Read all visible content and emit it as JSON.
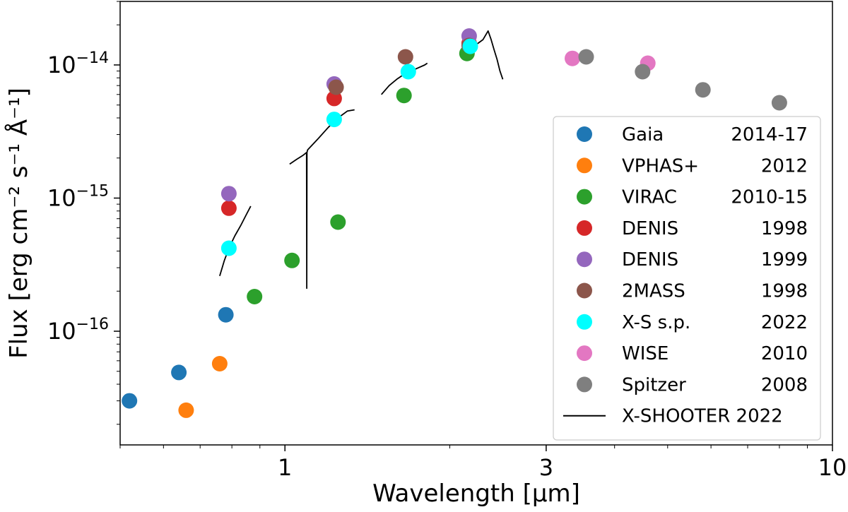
{
  "chart_data": {
    "type": "scatter",
    "xscale": "log",
    "yscale": "log",
    "xlim": [
      0.5,
      10
    ],
    "ylim": [
      1.4e-17,
      3e-14
    ],
    "xlabel": "Wavelength [µm]",
    "ylabel": "Flux [erg cm⁻² s⁻¹ Å⁻¹]",
    "x_ticks": [
      {
        "value": 1,
        "label": "1"
      },
      {
        "value": 3,
        "label": "3"
      },
      {
        "value": 10,
        "label": "10"
      }
    ],
    "y_ticks": [
      {
        "value": 1e-16,
        "base": "10",
        "exp": "−16"
      },
      {
        "value": 1e-15,
        "base": "10",
        "exp": "−15"
      },
      {
        "value": 1e-14,
        "base": "10",
        "exp": "−14"
      }
    ],
    "series": [
      {
        "name": "Gaia",
        "year": "2014-17",
        "color": "#1f77b4",
        "x": [
          0.52,
          0.64,
          0.78
        ],
        "y": [
          3e-17,
          4.9e-17,
          1.33e-16
        ]
      },
      {
        "name": "VPHAS+",
        "year": "2012",
        "color": "#ff7f0e",
        "x": [
          0.66,
          0.76
        ],
        "y": [
          2.55e-17,
          5.7e-17
        ]
      },
      {
        "name": "VIRAC",
        "year": "2010-15",
        "color": "#2ca02c",
        "x": [
          0.88,
          1.03,
          1.25,
          1.65,
          2.15
        ],
        "y": [
          1.82e-16,
          3.4e-16,
          6.6e-16,
          5.9e-15,
          1.22e-14
        ]
      },
      {
        "name": "DENIS",
        "year": "1998",
        "color": "#d62728",
        "x": [
          0.79,
          1.23,
          2.17
        ],
        "y": [
          8.4e-16,
          5.6e-15,
          1.45e-14
        ]
      },
      {
        "name": "DENIS",
        "year": "1999",
        "color": "#9467bd",
        "x": [
          0.79,
          1.23,
          2.17
        ],
        "y": [
          1.08e-15,
          7.2e-15,
          1.65e-14
        ]
      },
      {
        "name": "2MASS",
        "year": "1998",
        "color": "#8c564b",
        "x": [
          1.24,
          1.66,
          2.17
        ],
        "y": [
          6.8e-15,
          1.15e-14,
          1.4e-14
        ]
      },
      {
        "name": "X-S s.p.",
        "year": "2022",
        "color": "#00ffff",
        "x": [
          0.79,
          1.23,
          1.68,
          2.18
        ],
        "y": [
          4.2e-16,
          3.9e-15,
          8.9e-15,
          1.38e-14
        ]
      },
      {
        "name": "WISE",
        "year": "2010",
        "color": "#e377c2",
        "x": [
          3.35,
          4.6
        ],
        "y": [
          1.12e-14,
          1.03e-14
        ]
      },
      {
        "name": "Spitzer",
        "year": "2008",
        "color": "#7f7f7f",
        "x": [
          3.55,
          4.5,
          5.8,
          8.0
        ],
        "y": [
          1.15e-14,
          8.9e-15,
          6.5e-15,
          5.2e-15
        ]
      }
    ],
    "spectrum": {
      "name": "X-SHOOTER 2022",
      "color": "#000000",
      "segments": [
        {
          "x": [
            0.76,
            0.775,
            0.79,
            0.81,
            0.83,
            0.85,
            0.866
          ],
          "y": [
            2.6e-16,
            3.4e-16,
            4.2e-16,
            5.2e-16,
            6.2e-16,
            7.5e-16,
            8.7e-16
          ]
        },
        {
          "x": [
            1.02,
            1.05,
            1.08,
            1.095,
            1.096,
            1.097,
            1.1,
            1.15,
            1.2,
            1.25,
            1.3,
            1.34
          ],
          "y": [
            1.8e-15,
            1.95e-15,
            2.1e-15,
            2.2e-15,
            2.1e-16,
            2.2e-15,
            2.3e-15,
            2.8e-15,
            3.4e-15,
            4e-15,
            4.5e-15,
            4.6e-15
          ]
        },
        {
          "x": [
            1.5,
            1.55,
            1.6,
            1.65,
            1.7,
            1.75,
            1.8,
            1.82
          ],
          "y": [
            6e-15,
            7e-15,
            7.8e-15,
            8.5e-15,
            9e-15,
            9.5e-15,
            1e-14,
            1.03e-14
          ]
        },
        {
          "x": [
            2.15,
            2.2,
            2.25,
            2.3,
            2.35,
            2.38,
            2.41,
            2.44,
            2.47,
            2.5
          ],
          "y": [
            1.35e-14,
            1.4e-14,
            1.45e-14,
            1.55e-14,
            1.8e-14,
            1.55e-14,
            1.3e-14,
            1.1e-14,
            9e-15,
            7.8e-15
          ]
        }
      ]
    },
    "legend_position": "lower-right"
  }
}
